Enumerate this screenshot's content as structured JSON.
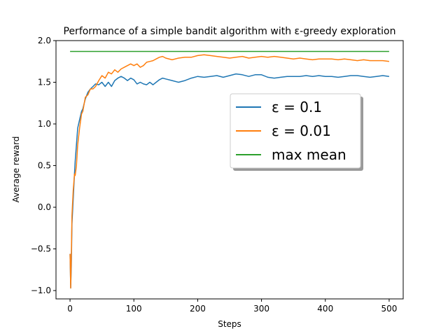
{
  "chart_data": {
    "type": "line",
    "title": "Performance of a simple bandit algorithm with ε-greedy exploration",
    "xlabel": "Steps",
    "ylabel": "Average reward",
    "xlim": [
      -22,
      522
    ],
    "ylim": [
      -1.1,
      2.0
    ],
    "xticks": [
      0,
      100,
      200,
      300,
      400,
      500
    ],
    "yticks": [
      -1.0,
      -0.5,
      0.0,
      0.5,
      1.0,
      1.5,
      2.0
    ],
    "ytick_labels": [
      "−1.0",
      "−0.5",
      "0.0",
      "0.5",
      "1.0",
      "1.5",
      "2.0"
    ],
    "grid": false,
    "legend_position": "center-right",
    "series": [
      {
        "name": "ε = 0.1",
        "color": "#1f77b4",
        "x": [
          0,
          1,
          2,
          3,
          5,
          7,
          8,
          10,
          12,
          15,
          18,
          20,
          24,
          28,
          32,
          36,
          40,
          45,
          50,
          55,
          60,
          65,
          70,
          75,
          80,
          85,
          90,
          95,
          100,
          105,
          110,
          115,
          120,
          125,
          130,
          135,
          140,
          145,
          150,
          160,
          170,
          180,
          190,
          200,
          210,
          220,
          230,
          240,
          250,
          260,
          270,
          280,
          290,
          300,
          310,
          320,
          330,
          340,
          350,
          360,
          370,
          380,
          390,
          400,
          410,
          420,
          430,
          440,
          450,
          460,
          470,
          480,
          490,
          500
        ],
        "y": [
          -0.56,
          -0.97,
          -0.7,
          -0.2,
          0.1,
          0.4,
          0.55,
          0.75,
          0.95,
          1.05,
          1.15,
          1.18,
          1.3,
          1.38,
          1.42,
          1.45,
          1.48,
          1.47,
          1.5,
          1.45,
          1.5,
          1.45,
          1.52,
          1.55,
          1.57,
          1.55,
          1.52,
          1.55,
          1.53,
          1.48,
          1.5,
          1.48,
          1.47,
          1.5,
          1.47,
          1.5,
          1.53,
          1.55,
          1.54,
          1.52,
          1.5,
          1.52,
          1.55,
          1.57,
          1.56,
          1.57,
          1.58,
          1.56,
          1.58,
          1.6,
          1.59,
          1.57,
          1.59,
          1.59,
          1.56,
          1.55,
          1.56,
          1.57,
          1.57,
          1.57,
          1.58,
          1.57,
          1.58,
          1.57,
          1.57,
          1.56,
          1.57,
          1.58,
          1.58,
          1.57,
          1.56,
          1.57,
          1.58,
          1.57
        ]
      },
      {
        "name": "ε = 0.01",
        "color": "#ff7f0e",
        "x": [
          0,
          1,
          2,
          3,
          5,
          7,
          8,
          10,
          12,
          15,
          18,
          20,
          24,
          28,
          32,
          36,
          40,
          45,
          50,
          55,
          60,
          65,
          70,
          75,
          80,
          85,
          90,
          95,
          100,
          105,
          110,
          115,
          120,
          125,
          130,
          135,
          140,
          145,
          150,
          160,
          170,
          180,
          190,
          200,
          210,
          220,
          230,
          240,
          250,
          260,
          270,
          280,
          290,
          300,
          310,
          320,
          330,
          340,
          350,
          360,
          370,
          380,
          390,
          400,
          410,
          420,
          430,
          440,
          450,
          460,
          470,
          480,
          490,
          500
        ],
        "y": [
          -0.56,
          -0.97,
          -0.6,
          -0.1,
          0.2,
          0.4,
          0.38,
          0.5,
          0.75,
          0.95,
          1.12,
          1.15,
          1.32,
          1.35,
          1.42,
          1.42,
          1.45,
          1.52,
          1.58,
          1.55,
          1.62,
          1.6,
          1.65,
          1.62,
          1.66,
          1.68,
          1.7,
          1.72,
          1.7,
          1.72,
          1.68,
          1.7,
          1.74,
          1.75,
          1.76,
          1.78,
          1.8,
          1.81,
          1.79,
          1.77,
          1.79,
          1.8,
          1.8,
          1.82,
          1.83,
          1.82,
          1.81,
          1.8,
          1.79,
          1.8,
          1.81,
          1.79,
          1.8,
          1.81,
          1.8,
          1.81,
          1.8,
          1.79,
          1.78,
          1.79,
          1.78,
          1.77,
          1.78,
          1.78,
          1.78,
          1.77,
          1.78,
          1.77,
          1.76,
          1.77,
          1.76,
          1.76,
          1.76,
          1.75
        ]
      },
      {
        "name": "max mean",
        "color": "#2ca02c",
        "x": [
          0,
          500
        ],
        "y": [
          1.87,
          1.87
        ]
      }
    ]
  }
}
